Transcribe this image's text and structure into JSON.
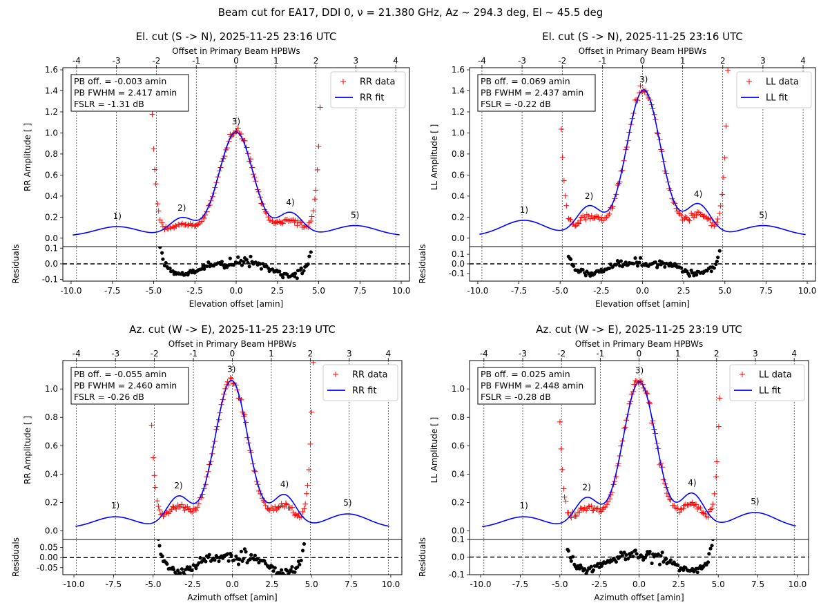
{
  "figure": {
    "suptitle": "Beam cut for EA17, DDI 0, ν = 21.380 GHz, Az ~ 294.3 deg, El ~ 45.5 deg",
    "colors": {
      "data": "#ff0000",
      "fit": "#0000ff",
      "residuals": "#000000"
    }
  },
  "chart_data": [
    {
      "type": "line",
      "title": "El. cut (S -> N), 2025-11-25 23:16 UTC",
      "top_xlabel": "Offset in Primary Beam HPBWs",
      "top_ticks": [
        "-4",
        "-3",
        "-2",
        "-1",
        "0",
        "1",
        "2",
        "3",
        "4"
      ],
      "xlabel": "Elevation offset [amin]",
      "ylabel": "RR Amplitude [ ]",
      "res_ylabel": "Residuals",
      "xlim": [
        -10.5,
        10.5
      ],
      "xticks": [
        "-10.0",
        "-7.5",
        "-5.0",
        "-2.5",
        "0.0",
        "2.5",
        "5.0",
        "7.5",
        "10.0"
      ],
      "ylim": [
        -0.08,
        1.62
      ],
      "yticks": [
        "0.0",
        "0.2",
        "0.4",
        "0.6",
        "0.8",
        "1.0",
        "1.2",
        "1.4",
        "1.6"
      ],
      "res_ylim": [
        -0.11,
        0.11
      ],
      "res_yticks": [
        "-0.1",
        "0.0",
        "0.1"
      ],
      "pb_offset": -0.003,
      "pb_fwhm": 2.417,
      "fslr_db": -1.31,
      "peak": 0.99,
      "noise": 0.025,
      "seed": 11,
      "sidelobe_values": [
        0.09,
        0.17,
        0.22,
        0.1
      ],
      "annotation": [
        "PB off. = -0.003 amin",
        "PB FWHM = 2.417 amin",
        "FSLR = -1.31 dB"
      ],
      "lobe_labels": [
        "1)",
        "2)",
        "3)",
        "4)",
        "5)"
      ],
      "legend": {
        "data": "RR data",
        "fit": "RR fit",
        "position": "top-right"
      }
    },
    {
      "type": "line",
      "title": "El. cut (S -> N), 2025-11-25 23:16 UTC",
      "top_xlabel": "Offset in Primary Beam HPBWs",
      "top_ticks": [
        "-4",
        "-3",
        "-2",
        "-1",
        "0",
        "1",
        "2",
        "3",
        "4"
      ],
      "xlabel": "Elevation offset [amin]",
      "ylabel": "LL Amplitude [ ]",
      "res_ylabel": "Residuals",
      "xlim": [
        -10.5,
        10.5
      ],
      "xticks": [
        "-10.0",
        "-7.5",
        "-5.0",
        "-2.5",
        "0.0",
        "2.5",
        "5.0",
        "7.5",
        "10.0"
      ],
      "ylim": [
        -0.08,
        1.62
      ],
      "yticks": [
        "0.0",
        "0.2",
        "0.4",
        "0.6",
        "0.8",
        "1.0",
        "1.2",
        "1.4",
        "1.6"
      ],
      "res_ylim": [
        -0.18,
        0.18
      ],
      "res_yticks": [
        "-0.1",
        "0.0",
        "0.1"
      ],
      "pb_offset": 0.069,
      "pb_fwhm": 2.437,
      "fslr_db": -0.22,
      "peak": 1.39,
      "noise": 0.035,
      "seed": 23,
      "sidelobe_values": [
        0.15,
        0.28,
        0.3,
        0.1
      ],
      "annotation": [
        "PB off. = 0.069 amin",
        "PB FWHM = 2.437 amin",
        "FSLR = -0.22 dB"
      ],
      "lobe_labels": [
        "1)",
        "2)",
        "3)",
        "4)",
        "5)"
      ],
      "legend": {
        "data": "LL data",
        "fit": "LL fit",
        "position": "top-right"
      }
    },
    {
      "type": "line",
      "title": "Az. cut (W -> E), 2025-11-25 23:19 UTC",
      "top_xlabel": "Offset in Primary Beam HPBWs",
      "top_ticks": [
        "-4",
        "-3",
        "-2",
        "-1",
        "0",
        "1",
        "2",
        "3",
        "4"
      ],
      "xlabel": "Azimuth offset [amin]",
      "ylabel": "RR Amplitude [ ]",
      "res_ylabel": "Residuals",
      "xlim": [
        -10.7,
        10.7
      ],
      "xticks": [
        "-10.0",
        "-7.5",
        "-5.0",
        "-2.5",
        "0.0",
        "2.5",
        "5.0",
        "7.5",
        "10.0"
      ],
      "ylim": [
        -0.06,
        1.2
      ],
      "yticks": [
        "0.0",
        "0.2",
        "0.4",
        "0.6",
        "0.8",
        "1.0"
      ],
      "res_ylim": [
        -0.085,
        0.09
      ],
      "res_yticks": [
        "-0.05",
        "0.00",
        "0.05"
      ],
      "pb_offset": -0.055,
      "pb_fwhm": 2.46,
      "fslr_db": -0.26,
      "peak": 1.04,
      "noise": 0.025,
      "seed": 37,
      "sidelobe_values": [
        0.08,
        0.22,
        0.23,
        0.1
      ],
      "annotation": [
        "PB off. = -0.055 amin",
        "PB FWHM = 2.460 amin",
        "FSLR = -0.26 dB"
      ],
      "lobe_labels": [
        "1)",
        "2)",
        "3)",
        "4)",
        "5)"
      ],
      "legend": {
        "data": "RR data",
        "fit": "RR fit",
        "position": "top-right"
      }
    },
    {
      "type": "line",
      "title": "Az. cut (W -> E), 2025-11-25 23:19 UTC",
      "top_xlabel": "Offset in Primary Beam HPBWs",
      "top_ticks": [
        "-4",
        "-3",
        "-2",
        "-1",
        "0",
        "1",
        "2",
        "3",
        "4"
      ],
      "xlabel": "Azimuth offset [amin]",
      "ylabel": "LL Amplitude [ ]",
      "res_ylabel": "Residuals",
      "xlim": [
        -10.7,
        10.7
      ],
      "xticks": [
        "-10.0",
        "-7.5",
        "-5.0",
        "-2.5",
        "0.0",
        "2.5",
        "5.0",
        "7.5",
        "10.0"
      ],
      "ylim": [
        -0.06,
        1.2
      ],
      "yticks": [
        "0.0",
        "0.2",
        "0.4",
        "0.6",
        "0.8",
        "1.0"
      ],
      "res_ylim": [
        -0.1,
        0.1
      ],
      "res_yticks": [
        "-0.1",
        "0.0",
        "0.1"
      ],
      "pb_offset": 0.025,
      "pb_fwhm": 2.448,
      "fslr_db": -0.28,
      "peak": 1.03,
      "noise": 0.025,
      "seed": 53,
      "sidelobe_values": [
        0.08,
        0.21,
        0.24,
        0.11
      ],
      "annotation": [
        "PB off. = 0.025 amin",
        "PB FWHM = 2.448 amin",
        "FSLR = -0.28 dB"
      ],
      "lobe_labels": [
        "1)",
        "2)",
        "3)",
        "4)",
        "5)"
      ],
      "legend": {
        "data": "LL data",
        "fit": "LL fit",
        "position": "top-right"
      }
    }
  ]
}
